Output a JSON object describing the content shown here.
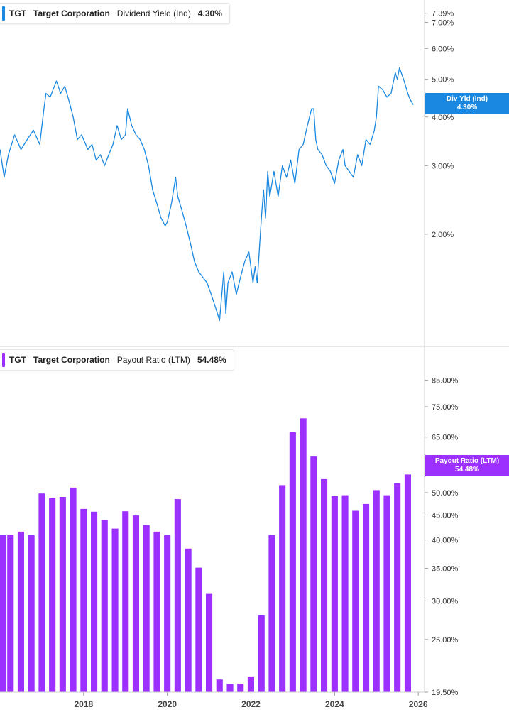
{
  "charts": {
    "top": {
      "ticker": "TGT",
      "company": "Target Corporation",
      "metric": "Dividend Yield (Ind)",
      "value": "4.30%",
      "badge_label": "Div Yld (Ind)",
      "badge_value": "4.30%",
      "color": "#1a88e0"
    },
    "bottom": {
      "ticker": "TGT",
      "company": "Target Corporation",
      "metric": "Payout Ratio (LTM)",
      "value": "54.48%",
      "badge_label": "Payout Ratio (LTM)",
      "badge_value": "54.48%",
      "color": "#9b30ff"
    }
  },
  "chart_data": [
    {
      "type": "line",
      "series": [
        {
          "name": "Dividend Yield (Ind)",
          "x": [
            2016.0,
            2016.1,
            2016.2,
            2016.35,
            2016.5,
            2016.65,
            2016.8,
            2016.95,
            2017.05,
            2017.1,
            2017.2,
            2017.35,
            2017.45,
            2017.55,
            2017.65,
            2017.75,
            2017.85,
            2017.95,
            2018.05,
            2018.1,
            2018.2,
            2018.3,
            2018.4,
            2018.5,
            2018.6,
            2018.7,
            2018.8,
            2018.9,
            2019.0,
            2019.05,
            2019.15,
            2019.25,
            2019.35,
            2019.45,
            2019.55,
            2019.65,
            2019.75,
            2019.85,
            2019.95,
            2020.0,
            2020.1,
            2020.2,
            2020.25,
            2020.35,
            2020.45,
            2020.55,
            2020.65,
            2020.75,
            2020.85,
            2020.95,
            2021.05,
            2021.15,
            2021.25,
            2021.35,
            2021.4,
            2021.45,
            2021.55,
            2021.65,
            2021.75,
            2021.85,
            2021.95,
            2022.05,
            2022.1,
            2022.15,
            2022.25,
            2022.3,
            2022.35,
            2022.4,
            2022.45,
            2022.55,
            2022.65,
            2022.75,
            2022.85,
            2022.95,
            2023.05,
            2023.15,
            2023.25,
            2023.35,
            2023.45,
            2023.5,
            2023.55,
            2023.6,
            2023.7,
            2023.8,
            2023.9,
            2024.0,
            2024.1,
            2024.2,
            2024.25,
            2024.35,
            2024.45,
            2024.55,
            2024.65,
            2024.75,
            2024.85,
            2024.95,
            2025.0,
            2025.05,
            2025.15,
            2025.25,
            2025.35,
            2025.45,
            2025.5,
            2025.55,
            2025.65,
            2025.75,
            2025.8,
            2025.88
          ],
          "y": [
            3.3,
            2.8,
            3.2,
            3.6,
            3.3,
            3.5,
            3.7,
            3.4,
            4.2,
            4.6,
            4.5,
            4.95,
            4.6,
            4.8,
            4.4,
            4.0,
            3.5,
            3.6,
            3.4,
            3.3,
            3.4,
            3.1,
            3.2,
            3.0,
            3.2,
            3.4,
            3.8,
            3.5,
            3.6,
            4.2,
            3.8,
            3.6,
            3.5,
            3.3,
            3.0,
            2.6,
            2.4,
            2.2,
            2.1,
            2.15,
            2.4,
            2.8,
            2.5,
            2.3,
            2.1,
            1.9,
            1.7,
            1.6,
            1.55,
            1.5,
            1.4,
            1.3,
            1.2,
            1.6,
            1.25,
            1.5,
            1.6,
            1.4,
            1.55,
            1.7,
            1.8,
            1.5,
            1.65,
            1.5,
            2.2,
            2.6,
            2.2,
            2.9,
            2.5,
            2.9,
            2.5,
            3.0,
            2.8,
            3.1,
            2.7,
            3.3,
            3.4,
            3.8,
            4.2,
            4.2,
            3.5,
            3.3,
            3.2,
            3.0,
            2.9,
            2.7,
            3.1,
            3.3,
            3.0,
            2.9,
            2.8,
            3.2,
            3.0,
            3.5,
            3.4,
            3.7,
            4.0,
            4.8,
            4.7,
            4.5,
            4.6,
            5.2,
            5.0,
            5.35,
            5.0,
            4.6,
            4.45,
            4.3
          ]
        }
      ],
      "xlim": [
        2016.0,
        2026.15
      ],
      "ylim": [
        1.11,
        7.6
      ],
      "yscale": "log",
      "yticks": [
        "7.39%",
        "7.00%",
        "6.00%",
        "5.00%",
        "4.00%",
        "3.00%",
        "2.00%"
      ],
      "ytick_values": [
        7.39,
        7.0,
        6.0,
        5.0,
        4.0,
        3.0,
        2.0
      ],
      "grid": false,
      "legend": "top-left"
    },
    {
      "type": "bar",
      "series": [
        {
          "name": "Payout Ratio (LTM)",
          "x": [
            2016.0,
            2016.25,
            2016.5,
            2016.75,
            2017.0,
            2017.25,
            2017.5,
            2017.75,
            2018.0,
            2018.25,
            2018.5,
            2018.75,
            2019.0,
            2019.25,
            2019.5,
            2019.75,
            2020.0,
            2020.25,
            2020.5,
            2020.75,
            2021.0,
            2021.25,
            2021.5,
            2021.75,
            2022.0,
            2022.25,
            2022.5,
            2022.75,
            2023.0,
            2023.25,
            2023.5,
            2023.75,
            2024.0,
            2024.25,
            2024.5,
            2024.75,
            2025.0,
            2025.25,
            2025.5,
            2025.75
          ],
          "values": [
            40.9,
            41.0,
            41.6,
            40.9,
            49.8,
            48.8,
            49.0,
            51.2,
            46.3,
            45.7,
            44.0,
            42.2,
            45.8,
            44.9,
            42.9,
            41.6,
            40.9,
            48.5,
            38.4,
            35.1,
            31.0,
            20.7,
            20.3,
            20.3,
            21.0,
            28.0,
            40.9,
            51.8,
            66.5,
            71.0,
            59.3,
            53.3,
            49.2,
            49.4,
            45.9,
            47.4,
            50.6,
            49.4,
            52.3,
            54.48
          ]
        }
      ],
      "xlim": [
        2016.0,
        2026.15
      ],
      "ylim": [
        19.5,
        92.0
      ],
      "yscale": "log",
      "yticks": [
        "85.00%",
        "75.00%",
        "65.00%",
        "50.00%",
        "45.00%",
        "40.00%",
        "35.00%",
        "30.00%",
        "25.00%",
        "19.50%"
      ],
      "ytick_values": [
        85,
        75,
        65,
        50,
        45,
        40,
        35,
        30,
        25,
        19.5
      ],
      "xticks": [
        "2018",
        "2020",
        "2022",
        "2024",
        "2026"
      ],
      "xtick_values": [
        2018,
        2020,
        2022,
        2024,
        2026
      ],
      "grid": false,
      "legend": "top-left"
    }
  ]
}
